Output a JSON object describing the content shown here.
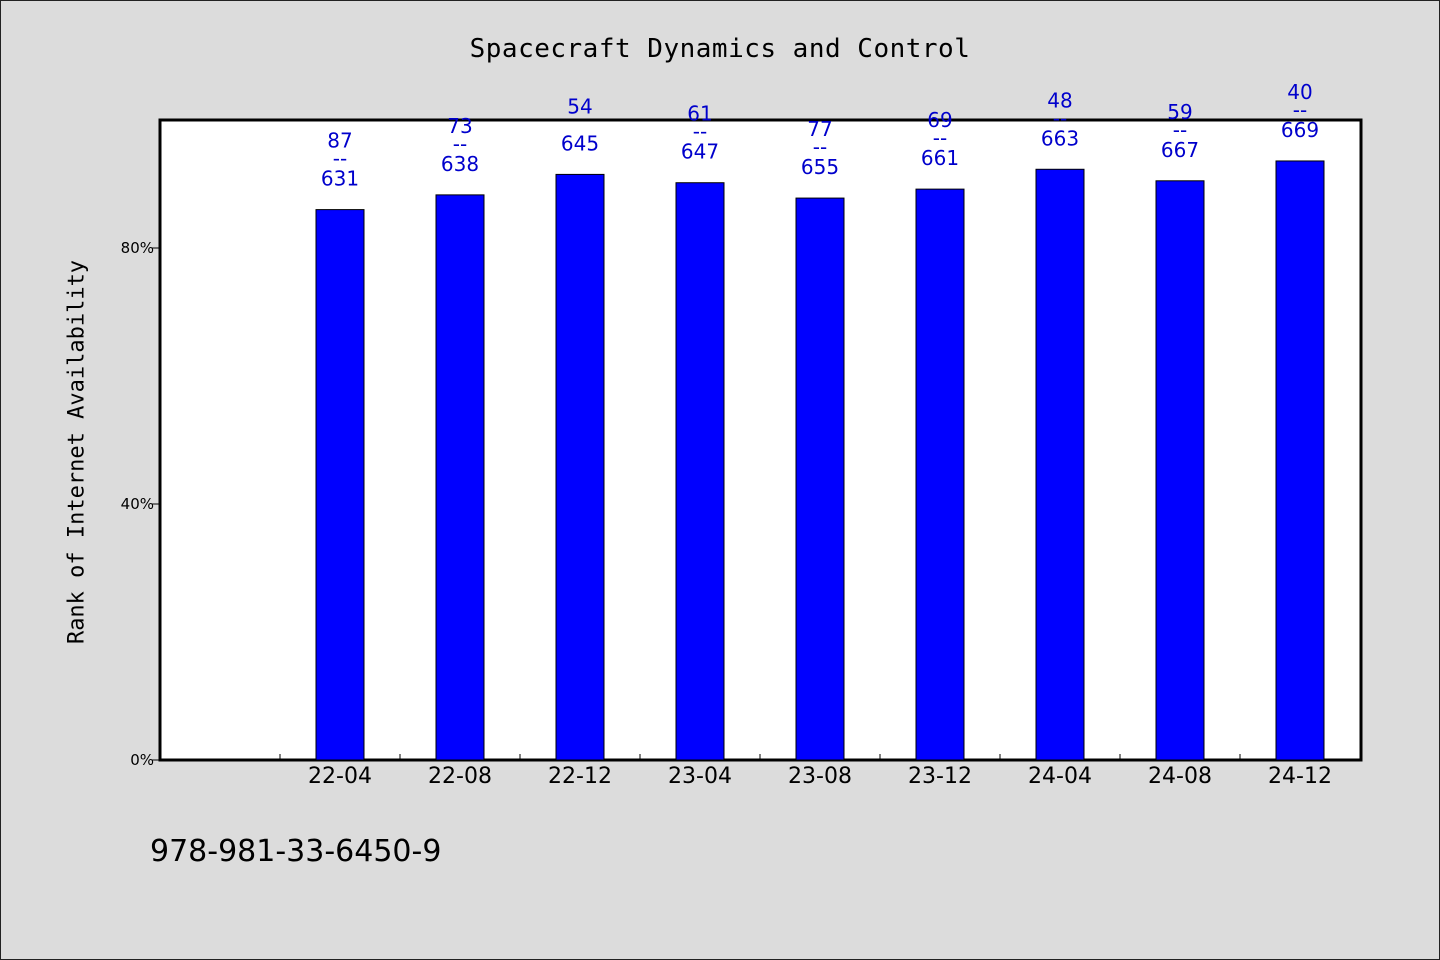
{
  "chart_data": {
    "type": "bar",
    "title": "Spacecraft Dynamics and Control",
    "ylabel": "Rank of Internet Availability",
    "xlabel": "",
    "ylim": [
      0,
      100
    ],
    "y_ticks": [
      0,
      40,
      80
    ],
    "y_tick_labels": [
      "0%",
      "40%",
      "80%"
    ],
    "grid": false,
    "bar_color": "#0000ff",
    "categories": [
      "22-04",
      "22-08",
      "22-12",
      "23-04",
      "23-08",
      "23-12",
      "24-04",
      "24-08",
      "24-12"
    ],
    "values": [
      86.0,
      88.3,
      91.5,
      90.2,
      87.8,
      89.2,
      92.3,
      90.5,
      93.6
    ],
    "data_labels": [
      {
        "top": "87",
        "sep": "--",
        "bottom": "631"
      },
      {
        "top": "73",
        "sep": "--",
        "bottom": "638"
      },
      {
        "top": "54",
        "sep": "",
        "bottom": "645"
      },
      {
        "top": "61",
        "sep": "--",
        "bottom": "647"
      },
      {
        "top": "77",
        "sep": "--",
        "bottom": "655"
      },
      {
        "top": "69",
        "sep": "--",
        "bottom": "661"
      },
      {
        "top": "48",
        "sep": "--",
        "bottom": "663"
      },
      {
        "top": "59",
        "sep": "--",
        "bottom": "667"
      },
      {
        "top": "40",
        "sep": "--",
        "bottom": "669"
      }
    ]
  },
  "footer": {
    "isbn": "978-981-33-6450-9"
  }
}
